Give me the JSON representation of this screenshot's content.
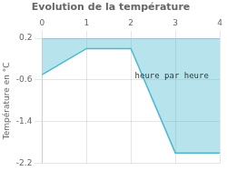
{
  "chart_data": {
    "type": "area",
    "title": "Evolution de la température",
    "ylabel": "Température en °C",
    "annotations": [
      "heure par heure"
    ],
    "x": [
      0,
      1,
      2,
      3,
      4
    ],
    "series": [
      {
        "values": [
          -0.5,
          0.0,
          0.0,
          -2.0,
          -2.0
        ],
        "color": "#4ab8d0"
      }
    ],
    "xlim": [
      0,
      4
    ],
    "ylim": [
      -2.2,
      0.2
    ],
    "xticks": [
      0,
      1,
      2,
      3,
      4
    ],
    "yticks": [
      0.2,
      -0.6,
      -1.4,
      -2.2
    ],
    "grid": true
  }
}
